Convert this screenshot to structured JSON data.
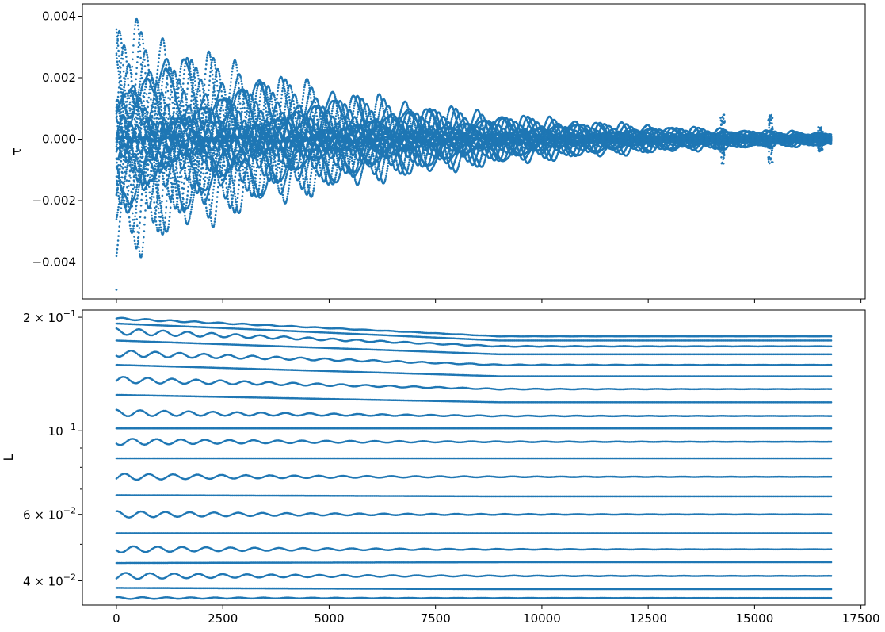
{
  "chart_data": [
    {
      "type": "scatter",
      "title": "",
      "xlabel": "",
      "ylabel": "τ",
      "xlim": [
        -800,
        17600
      ],
      "ylim": [
        -0.0052,
        0.0044
      ],
      "x_ticks": [
        0,
        2500,
        5000,
        7500,
        10000,
        12500,
        15000,
        17500
      ],
      "y_ticks": [
        0.004,
        0.002,
        0.0,
        -0.002,
        -0.004
      ],
      "y_tick_labels": [
        "0.004",
        "0.002",
        "0.000",
        "−0.002",
        "−0.004"
      ],
      "color": "#1f77b4",
      "x_range": [
        0,
        16800
      ],
      "amplitude_start": 0.0038,
      "envelope_decay_scale": 5800,
      "oscillation_period": 570,
      "outlier": {
        "x": 0,
        "y": -0.0049
      },
      "bursts": [
        {
          "x": 14250,
          "amplitude": 0.0008
        },
        {
          "x": 15370,
          "amplitude": 0.0008
        },
        {
          "x": 16550,
          "amplitude": 0.0004
        }
      ]
    },
    {
      "type": "scatter",
      "title": "",
      "xlabel": "",
      "ylabel": "L",
      "yscale": "log",
      "xlim": [
        -800,
        17600
      ],
      "ylim": [
        0.0345,
        0.209
      ],
      "x_ticks": [
        0,
        2500,
        5000,
        7500,
        10000,
        12500,
        15000,
        17500
      ],
      "x_tick_labels": [
        "0",
        "2500",
        "5000",
        "7500",
        "10000",
        "12500",
        "15000",
        "17500"
      ],
      "y_major_ticks": [
        0.2,
        0.1,
        0.06,
        0.04
      ],
      "y_major_tick_labels": [
        {
          "base": "2 × 10",
          "exp": "−1"
        },
        {
          "base": "10",
          "exp": "−1"
        },
        {
          "base": "6 × 10",
          "exp": "−2"
        },
        {
          "base": "4 × 10",
          "exp": "−2"
        }
      ],
      "y_minor_ticks": [
        0.09,
        0.08,
        0.07,
        0.05
      ],
      "color": "#1f77b4",
      "x_range": [
        0,
        16800
      ],
      "oscillation_period": 570,
      "levels": [
        0.1985,
        0.1925,
        0.1835,
        0.1735,
        0.1605,
        0.1495,
        0.1365,
        0.1245,
        0.1115,
        0.1015,
        0.0935,
        0.0845,
        0.0755,
        0.0675,
        0.06,
        0.0535,
        0.0485,
        0.0446,
        0.0412,
        0.0383,
        0.036
      ],
      "end_levels": [
        0.178,
        0.1735,
        0.1675,
        0.1595,
        0.1495,
        0.1395,
        0.129,
        0.119,
        0.1095,
        0.1015,
        0.0935,
        0.0845,
        0.0755,
        0.067,
        0.06,
        0.0535,
        0.0485,
        0.0448,
        0.0412,
        0.038,
        0.036
      ],
      "level_amplitudes": [
        0.006,
        0.0,
        0.02,
        0.0,
        0.02,
        0.0,
        0.02,
        0.0,
        0.02,
        0.0,
        0.02,
        0.0,
        0.02,
        0.0,
        0.02,
        0.0,
        0.02,
        0.0,
        0.02,
        0.0,
        0.006
      ]
    }
  ]
}
